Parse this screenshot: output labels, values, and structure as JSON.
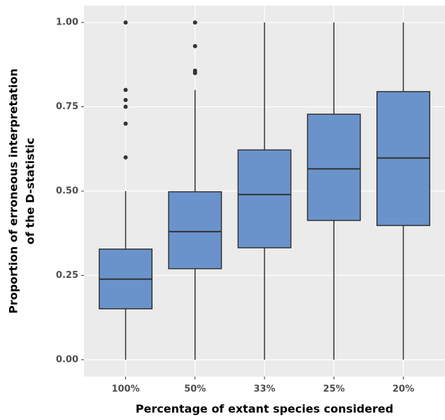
{
  "chart_data": {
    "type": "box",
    "xlabel": "Percentage of extant species considered",
    "ylabel": [
      "Proportion of erroneous interpretation",
      "of the D-statistic"
    ],
    "categories": [
      "100%",
      "50%",
      "33%",
      "25%",
      "20%"
    ],
    "color": "#6a93cc",
    "ylim": [
      -0.05,
      1.05
    ],
    "yticks": [
      {
        "value": 0,
        "label": "0.00"
      },
      0.25,
      {
        "value": 0.5,
        "label": "0.50"
      },
      0.75,
      {
        "value": 1,
        "label": "1.00"
      }
    ],
    "grid": true,
    "boxes": [
      {
        "min": 0,
        "q1": 0.151,
        "median": 0.239,
        "q3": 0.328,
        "max": 0.5,
        "outliers": [
          0.6,
          0.7,
          0.75,
          0.77,
          0.8,
          1.0
        ]
      },
      {
        "min": 0,
        "q1": 0.27,
        "median": 0.38,
        "q3": 0.498,
        "max": 0.8,
        "outliers": [
          0.85,
          0.857,
          0.93,
          1.0
        ]
      },
      {
        "min": 0,
        "q1": 0.332,
        "median": 0.49,
        "q3": 0.622,
        "max": 1.0,
        "outliers": []
      },
      {
        "min": 0,
        "q1": 0.413,
        "median": 0.566,
        "q3": 0.728,
        "max": 1.0,
        "outliers": []
      },
      {
        "min": 0,
        "q1": 0.398,
        "median": 0.598,
        "q3": 0.795,
        "max": 1.0,
        "outliers": []
      }
    ]
  }
}
